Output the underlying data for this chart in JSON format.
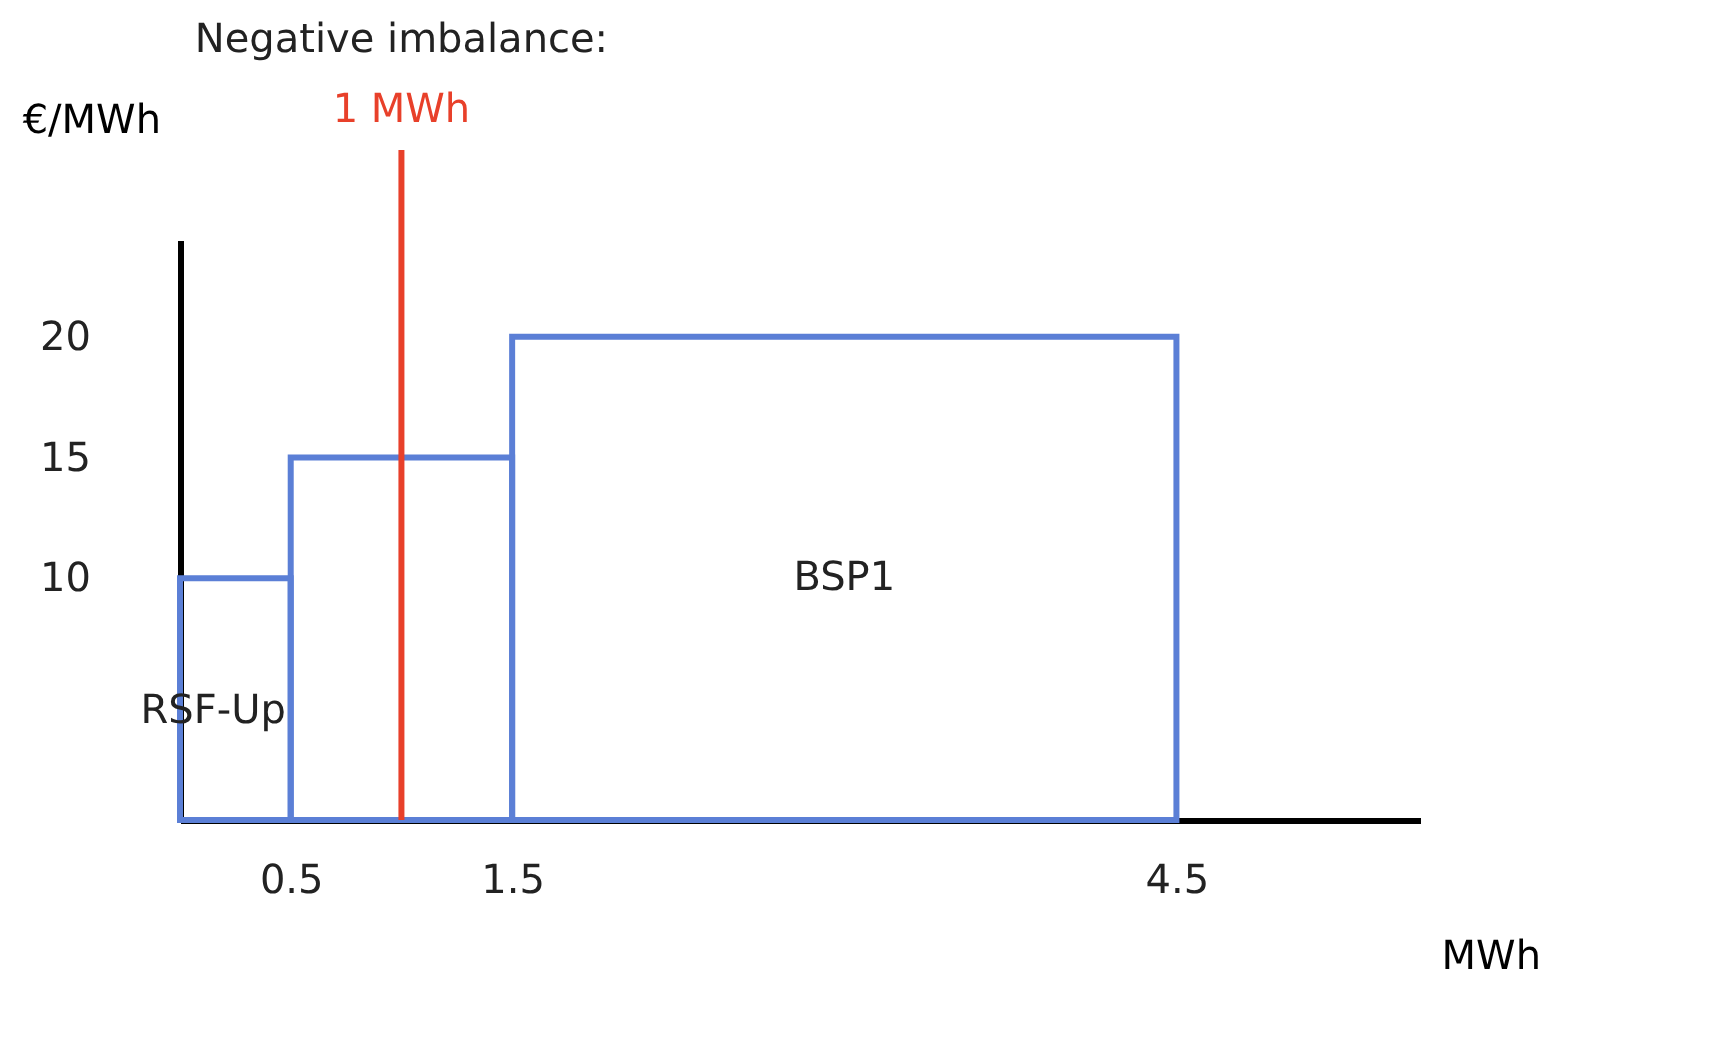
{
  "chart_data": {
    "type": "histogram",
    "title": "Negative imbalance:",
    "xlabel": "MWh",
    "ylabel": "€/MWh",
    "bins": [
      0,
      0.5,
      1.5,
      4.5
    ],
    "values": [
      10,
      15,
      20
    ],
    "color": "#5b7fd6",
    "xlim": [
      0,
      5.6
    ],
    "xticks": [
      0.5,
      1.5,
      4.5
    ],
    "ylim": [
      0,
      24
    ],
    "yticks": [
      10,
      15,
      20
    ],
    "ref_lines": [
      {
        "axis": "x",
        "value": 1,
        "label": "1 MWh",
        "color": "#e8402a"
      }
    ],
    "annotations": [
      "RSF-Up",
      "BSP1"
    ],
    "grid": false
  }
}
